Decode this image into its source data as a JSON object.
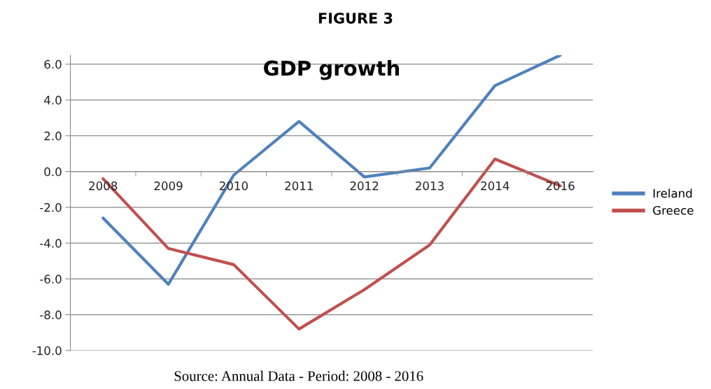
{
  "chart_data": {
    "type": "line",
    "title": "FIGURE 3",
    "subtitle": "GDP growth",
    "categories": [
      "2008",
      "2009",
      "2010",
      "2011",
      "2012",
      "2013",
      "2014",
      "2016"
    ],
    "series": [
      {
        "name": "Ireland",
        "color": "#4f81bd",
        "values": [
          -2.6,
          -6.3,
          -0.2,
          2.8,
          -0.3,
          0.2,
          4.8,
          6.5
        ]
      },
      {
        "name": "Greece",
        "color": "#c0504d",
        "values": [
          -0.4,
          -4.3,
          -5.2,
          -8.8,
          -6.6,
          -4.1,
          0.7,
          -0.8
        ]
      }
    ],
    "ylim": [
      -10,
      6.5
    ],
    "yticks": [
      {
        "value": -10,
        "label": "-10.0"
      },
      {
        "value": -8,
        "label": "-8.0"
      },
      {
        "value": -6,
        "label": "-6.0"
      },
      {
        "value": -4,
        "label": "-4.0"
      },
      {
        "value": -2,
        "label": "-2.0"
      },
      {
        "value": 0,
        "label": "0.0"
      },
      {
        "value": 2,
        "label": "2.0"
      },
      {
        "value": 4,
        "label": "4.0"
      },
      {
        "value": 6,
        "label": "6.0"
      }
    ],
    "grid": "y",
    "legend": "right",
    "marker": "none",
    "line_style": "solid",
    "annotations": [
      "Source: Annual Data - Period: 2008 - 2016"
    ]
  }
}
